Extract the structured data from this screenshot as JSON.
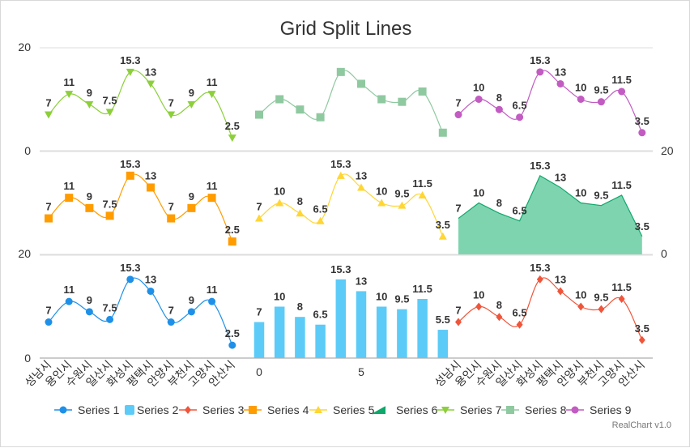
{
  "chart_data": {
    "type": "line",
    "title": "Grid Split Lines",
    "credit": "RealChart v1.0",
    "categories": [
      "성남시",
      "용인시",
      "수원시",
      "일산시",
      "화성시",
      "평택시",
      "안양시",
      "부천시",
      "고양시",
      "안산시"
    ],
    "x_numeric_ticks": [
      "0",
      "5"
    ],
    "y_ticks": {
      "left_top": [
        "0",
        "20"
      ],
      "left_bottom": [
        "0",
        "20"
      ],
      "right_middle": [
        "0",
        "20"
      ]
    },
    "ylim": [
      0,
      20
    ],
    "grid": true,
    "legend_position": "bottom",
    "series": [
      {
        "name": "Series 1",
        "type": "line",
        "marker": "circle",
        "color": "#1e90e8",
        "pane": "bottom-left",
        "values": [
          7,
          11,
          9,
          7.5,
          15.3,
          13,
          7,
          9,
          11,
          2.5
        ]
      },
      {
        "name": "Series 2",
        "type": "bar",
        "marker": "rect",
        "color": "#5ccbf7",
        "pane": "bottom-middle",
        "values": [
          7,
          10,
          8,
          6.5,
          15.3,
          13,
          10,
          9.5,
          11.5,
          5.5
        ]
      },
      {
        "name": "Series 3",
        "type": "line",
        "marker": "diamond",
        "color": "#f0553a",
        "pane": "bottom-right",
        "values": [
          7,
          10,
          8,
          6.5,
          15.3,
          13,
          10,
          9.5,
          11.5,
          3.5
        ]
      },
      {
        "name": "Series 4",
        "type": "line",
        "marker": "square",
        "color": "#ff9c00",
        "pane": "middle-left",
        "values": [
          7,
          11,
          9,
          7.5,
          15.3,
          13,
          7,
          9,
          11,
          2.5
        ]
      },
      {
        "name": "Series 5",
        "type": "line",
        "marker": "triangle",
        "color": "#ffd633",
        "pane": "middle-middle",
        "values": [
          7,
          10,
          8,
          6.5,
          15.3,
          13,
          10,
          9.5,
          11.5,
          3.5
        ]
      },
      {
        "name": "Series 6",
        "type": "area",
        "marker": "area",
        "color": "#0fa86a",
        "pane": "middle-right",
        "values": [
          7,
          10,
          8,
          6.5,
          15.3,
          13,
          10,
          9.5,
          11.5,
          3.5
        ]
      },
      {
        "name": "Series 7",
        "type": "line",
        "marker": "triangle-down",
        "color": "#8ccf3a",
        "pane": "top-left",
        "values": [
          7,
          11,
          9,
          7.5,
          15.3,
          13,
          7,
          9,
          11,
          2.5
        ]
      },
      {
        "name": "Series 8",
        "type": "line",
        "marker": "square",
        "color": "#8fc9a0",
        "pane": "top-middle",
        "values": [
          7,
          10,
          8,
          6.5,
          15.3,
          13,
          10,
          9.5,
          11.5,
          3.5
        ],
        "labels_visible": false
      },
      {
        "name": "Series 9",
        "type": "line",
        "marker": "circle",
        "color": "#c25bc2",
        "pane": "top-right",
        "values": [
          7,
          10,
          8,
          6.5,
          15.3,
          13,
          10,
          9.5,
          11.5,
          3.5
        ]
      }
    ]
  }
}
